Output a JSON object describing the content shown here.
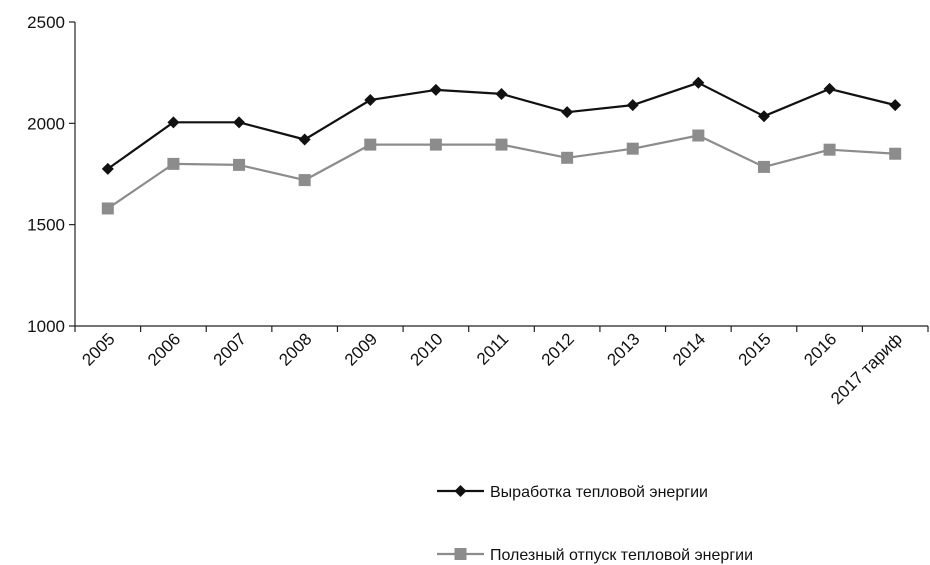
{
  "chart_data": {
    "type": "line",
    "categories": [
      "2005",
      "2006",
      "2007",
      "2008",
      "2009",
      "2010",
      "2011",
      "2012",
      "2013",
      "2014",
      "2015",
      "2016",
      "2017 тариф"
    ],
    "ylim": [
      1000,
      2500
    ],
    "yticks": [
      1000,
      1500,
      2000,
      2500
    ],
    "grid": false,
    "legend_position": "bottom-right",
    "series": [
      {
        "name": "Выработка тепловой энергии",
        "color": "#111111",
        "marker": "diamond",
        "values": [
          1775,
          2005,
          2005,
          1920,
          2115,
          2165,
          2145,
          2055,
          2090,
          2200,
          2035,
          2170,
          2090
        ]
      },
      {
        "name": "Полезный отпуск тепловой энергии",
        "color": "#8c8c8c",
        "marker": "square",
        "values": [
          1580,
          1800,
          1795,
          1720,
          1895,
          1895,
          1895,
          1830,
          1875,
          1940,
          1785,
          1870,
          1850
        ]
      }
    ]
  }
}
